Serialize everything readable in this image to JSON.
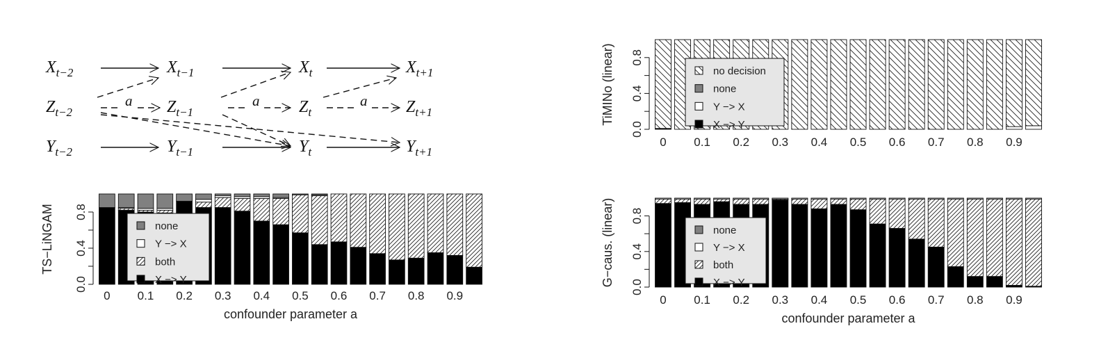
{
  "diagram": {
    "rows": [
      {
        "base": "X",
        "subs": [
          "t−2",
          "t−1",
          "t",
          "t+1"
        ]
      },
      {
        "base": "Z",
        "subs": [
          "t−2",
          "t−1",
          "t",
          "t+1"
        ]
      },
      {
        "base": "Y",
        "subs": [
          "t−2",
          "t−1",
          "t",
          "t+1"
        ]
      }
    ],
    "edge_label": "a"
  },
  "chart_data": [
    {
      "id": "tslingam",
      "type": "bar",
      "stacked": true,
      "xlabel": "confounder parameter a",
      "ylabel": "TS−LiNGAM",
      "ylim": [
        0,
        1
      ],
      "yticks": [
        "0.0",
        "0.4",
        "0.8"
      ],
      "xticks": [
        "0",
        "0.1",
        "0.2",
        "0.3",
        "0.4",
        "0.5",
        "0.6",
        "0.7",
        "0.8",
        "0.9"
      ],
      "x": [
        0,
        0.05,
        0.1,
        0.15,
        0.2,
        0.25,
        0.3,
        0.35,
        0.4,
        0.45,
        0.5,
        0.55,
        0.6,
        0.65,
        0.7,
        0.75,
        0.8,
        0.85,
        0.9,
        0.95
      ],
      "legend": {
        "placement": "center-left",
        "entries": [
          "none",
          "Y −> X",
          "both",
          "X −> Y"
        ]
      },
      "series": [
        {
          "name": "X −> Y",
          "fill": "#000000",
          "values": [
            0.85,
            0.82,
            0.8,
            0.79,
            0.92,
            0.85,
            0.85,
            0.81,
            0.7,
            0.66,
            0.57,
            0.44,
            0.47,
            0.41,
            0.34,
            0.27,
            0.29,
            0.35,
            0.32,
            0.19
          ]
        },
        {
          "name": "both",
          "fill": "hatch",
          "values": [
            0.0,
            0.02,
            0.02,
            0.03,
            0.0,
            0.06,
            0.11,
            0.14,
            0.25,
            0.29,
            0.42,
            0.54,
            0.53,
            0.59,
            0.66,
            0.73,
            0.71,
            0.65,
            0.68,
            0.81
          ]
        },
        {
          "name": "Y −> X",
          "fill": "#ffffff",
          "values": [
            0.0,
            0.01,
            0.02,
            0.02,
            0.0,
            0.03,
            0.02,
            0.02,
            0.02,
            0.01,
            0.0,
            0.01,
            0.0,
            0.0,
            0.0,
            0.0,
            0.0,
            0.0,
            0.0,
            0.0
          ]
        },
        {
          "name": "none",
          "fill": "#808080",
          "values": [
            0.15,
            0.15,
            0.16,
            0.16,
            0.08,
            0.06,
            0.02,
            0.03,
            0.03,
            0.04,
            0.01,
            0.01,
            0.0,
            0.0,
            0.0,
            0.0,
            0.0,
            0.0,
            0.0,
            0.0
          ]
        }
      ]
    },
    {
      "id": "timino",
      "type": "bar",
      "stacked": true,
      "xlabel": "",
      "ylabel": "TiMINo (linear)",
      "ylim": [
        0,
        1
      ],
      "yticks": [
        "0.0",
        "0.4",
        "0.8"
      ],
      "xticks": [
        "0",
        "0.1",
        "0.2",
        "0.3",
        "0.4",
        "0.5",
        "0.6",
        "0.7",
        "0.8",
        "0.9"
      ],
      "x": [
        0,
        0.05,
        0.1,
        0.15,
        0.2,
        0.25,
        0.3,
        0.35,
        0.4,
        0.45,
        0.5,
        0.55,
        0.6,
        0.65,
        0.7,
        0.75,
        0.8,
        0.85,
        0.9,
        0.95
      ],
      "legend": {
        "placement": "center-left",
        "entries": [
          "no decision",
          "none",
          "Y −> X",
          "X −> Y"
        ]
      },
      "series": [
        {
          "name": "X −> Y",
          "fill": "#000000",
          "values": [
            0.01,
            0,
            0,
            0,
            0,
            0,
            0,
            0,
            0,
            0,
            0,
            0,
            0,
            0,
            0,
            0,
            0,
            0,
            0,
            0
          ]
        },
        {
          "name": "Y −> X",
          "fill": "#ffffff",
          "values": [
            0,
            0,
            0,
            0,
            0,
            0,
            0,
            0,
            0,
            0,
            0,
            0,
            0,
            0,
            0,
            0,
            0,
            0,
            0.03,
            0.04
          ]
        },
        {
          "name": "none",
          "fill": "#808080",
          "values": [
            0,
            0,
            0,
            0,
            0,
            0,
            0,
            0,
            0,
            0,
            0,
            0,
            0,
            0,
            0,
            0,
            0,
            0,
            0,
            0
          ]
        },
        {
          "name": "no decision",
          "fill": "hatch-back",
          "values": [
            0.99,
            1,
            1,
            1,
            1,
            1,
            1,
            1,
            1,
            1,
            1,
            1,
            1,
            1,
            1,
            1,
            1,
            1,
            0.97,
            0.96
          ]
        }
      ]
    },
    {
      "id": "gcaus",
      "type": "bar",
      "stacked": true,
      "xlabel": "confounder parameter a",
      "ylabel": "G−caus. (linear)",
      "ylim": [
        0,
        1
      ],
      "yticks": [
        "0.0",
        "0.4",
        "0.8"
      ],
      "xticks": [
        "0",
        "0.1",
        "0.2",
        "0.3",
        "0.4",
        "0.5",
        "0.6",
        "0.7",
        "0.8",
        "0.9"
      ],
      "x": [
        0,
        0.05,
        0.1,
        0.15,
        0.2,
        0.25,
        0.3,
        0.35,
        0.4,
        0.45,
        0.5,
        0.55,
        0.6,
        0.65,
        0.7,
        0.75,
        0.8,
        0.85,
        0.9,
        0.95
      ],
      "legend": {
        "placement": "center-left",
        "entries": [
          "none",
          "Y −> X",
          "both",
          "X −> Y"
        ]
      },
      "series": [
        {
          "name": "X −> Y",
          "fill": "#000000",
          "values": [
            0.94,
            0.95,
            0.93,
            0.96,
            0.93,
            0.93,
            0.98,
            0.93,
            0.88,
            0.93,
            0.87,
            0.71,
            0.66,
            0.54,
            0.45,
            0.23,
            0.12,
            0.12,
            0.02,
            0.01
          ]
        },
        {
          "name": "both",
          "fill": "hatch",
          "values": [
            0.05,
            0.04,
            0.06,
            0.03,
            0.06,
            0.06,
            0.01,
            0.06,
            0.11,
            0.06,
            0.12,
            0.28,
            0.33,
            0.45,
            0.54,
            0.76,
            0.87,
            0.87,
            0.97,
            0.98
          ]
        },
        {
          "name": "Y −> X",
          "fill": "#ffffff",
          "values": [
            0.01,
            0.01,
            0.01,
            0.01,
            0.01,
            0.01,
            0.01,
            0.01,
            0.01,
            0.01,
            0.01,
            0.01,
            0.01,
            0.01,
            0.01,
            0.01,
            0.01,
            0.01,
            0.01,
            0.01
          ]
        },
        {
          "name": "none",
          "fill": "#808080",
          "values": [
            0,
            0,
            0,
            0,
            0,
            0,
            0,
            0,
            0,
            0,
            0,
            0,
            0,
            0,
            0,
            0,
            0,
            0,
            0,
            0
          ]
        }
      ]
    }
  ]
}
